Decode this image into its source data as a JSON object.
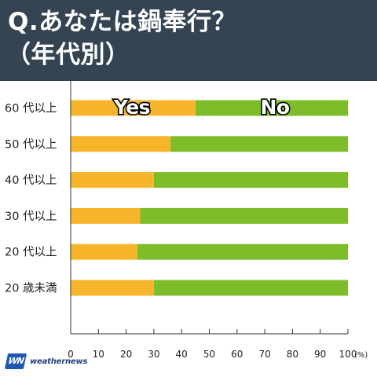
{
  "title": {
    "line1": "Q.あなたは鍋奉行？",
    "line2": "（年代別）"
  },
  "chart_data": {
    "type": "bar",
    "orientation": "horizontal",
    "stacked": true,
    "categories": [
      "60 代以上",
      "50 代以上",
      "40 代以上",
      "30 代以上",
      "20 代以上",
      "20 歳未満"
    ],
    "series": [
      {
        "name": "Yes",
        "color": "#f7b52c",
        "values": [
          45,
          36,
          30,
          25,
          24,
          30
        ]
      },
      {
        "name": "No",
        "color": "#7dbd2a",
        "values": [
          55,
          64,
          70,
          75,
          76,
          70
        ]
      }
    ],
    "xlim": [
      0,
      100
    ],
    "xticks": [
      "0",
      "10",
      "20",
      "30",
      "40",
      "50",
      "60",
      "70",
      "80",
      "90",
      "100"
    ],
    "xunit": "(%)",
    "grid": false,
    "legend": "inside-top-bar"
  },
  "logo": {
    "badge": "WN",
    "text": "weathernews"
  }
}
